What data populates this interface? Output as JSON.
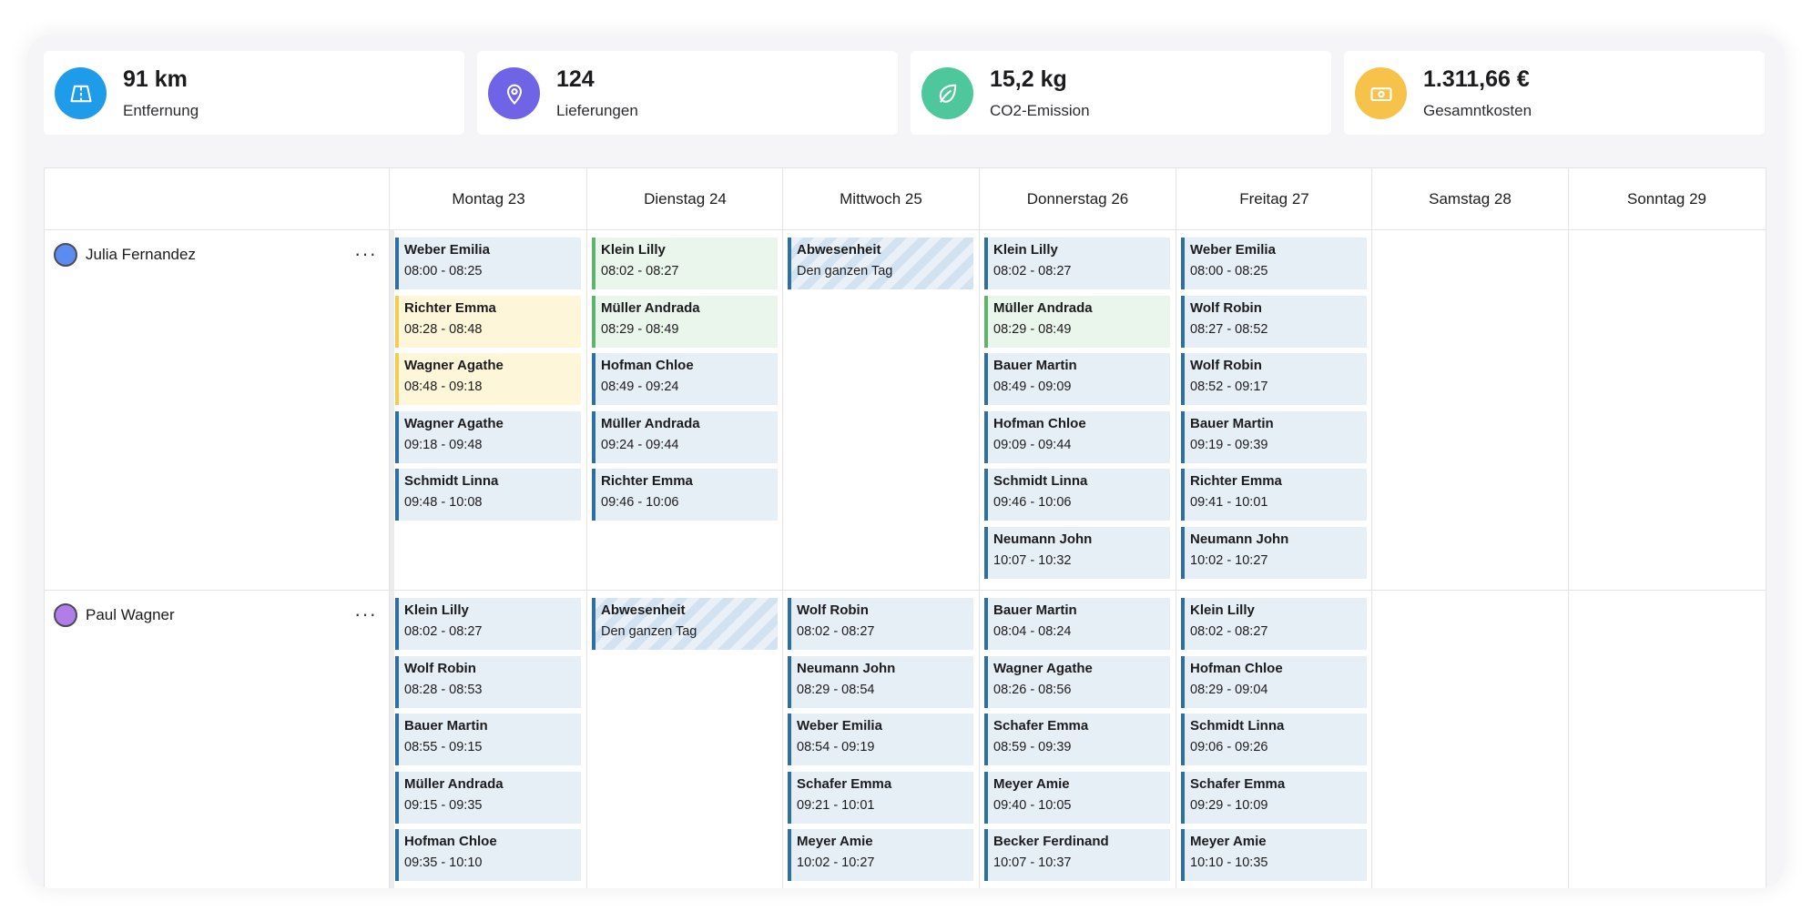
{
  "stats": [
    {
      "value": "91 km",
      "label": "Entfernung",
      "icon": "road-icon",
      "color": "#1e9be9"
    },
    {
      "value": "124",
      "label": "Lieferungen",
      "icon": "map-pin-icon",
      "color": "#6f63e6"
    },
    {
      "value": "15,2 kg",
      "label": "CO2-Emission",
      "icon": "leaf-icon",
      "color": "#4fc79c"
    },
    {
      "value": "1.311,66 €",
      "label": "Gesamntkosten",
      "icon": "banknote-icon",
      "color": "#f7c24a"
    }
  ],
  "days": [
    "Montag 23",
    "Dienstag 24",
    "Mittwoch 25",
    "Donnerstag 26",
    "Freitag 27",
    "Samstag 28",
    "Sonntag 29"
  ],
  "drivers": [
    {
      "name": "Julia Fernandez",
      "avatar_color": "#5b8def",
      "schedule": [
        [
          {
            "name": "Weber Emilia",
            "time": "08:00 - 08:25",
            "type": "blue"
          },
          {
            "name": "Richter Emma",
            "time": "08:28 - 08:48",
            "type": "yellow"
          },
          {
            "name": "Wagner Agathe",
            "time": "08:48 - 09:18",
            "type": "yellow"
          },
          {
            "name": "Wagner Agathe",
            "time": "09:18 - 09:48",
            "type": "blue"
          },
          {
            "name": "Schmidt Linna",
            "time": "09:48 - 10:08",
            "type": "blue"
          }
        ],
        [
          {
            "name": "Klein Lilly",
            "time": "08:02 - 08:27",
            "type": "green"
          },
          {
            "name": "Müller Andrada",
            "time": "08:29 - 08:49",
            "type": "green"
          },
          {
            "name": "Hofman Chloe",
            "time": "08:49 - 09:24",
            "type": "blue"
          },
          {
            "name": "Müller Andrada",
            "time": "09:24 - 09:44",
            "type": "blue"
          },
          {
            "name": "Richter Emma",
            "time": "09:46 - 10:06",
            "type": "blue"
          }
        ],
        [
          {
            "name": "Abwesenheit",
            "time": "Den ganzen Tag",
            "type": "absence"
          }
        ],
        [
          {
            "name": "Klein Lilly",
            "time": "08:02 - 08:27",
            "type": "blue"
          },
          {
            "name": "Müller Andrada",
            "time": "08:29 - 08:49",
            "type": "green"
          },
          {
            "name": "Bauer Martin",
            "time": "08:49 - 09:09",
            "type": "blue"
          },
          {
            "name": "Hofman Chloe",
            "time": "09:09 - 09:44",
            "type": "blue"
          },
          {
            "name": "Schmidt Linna",
            "time": "09:46 - 10:06",
            "type": "blue"
          },
          {
            "name": "Neumann John",
            "time": "10:07 - 10:32",
            "type": "blue"
          }
        ],
        [
          {
            "name": "Weber Emilia",
            "time": "08:00 - 08:25",
            "type": "blue"
          },
          {
            "name": "Wolf Robin",
            "time": "08:27 - 08:52",
            "type": "blue"
          },
          {
            "name": "Wolf Robin",
            "time": "08:52 - 09:17",
            "type": "blue"
          },
          {
            "name": "Bauer Martin",
            "time": "09:19 - 09:39",
            "type": "blue"
          },
          {
            "name": "Richter Emma",
            "time": "09:41 - 10:01",
            "type": "blue"
          },
          {
            "name": "Neumann John",
            "time": "10:02 - 10:27",
            "type": "blue"
          }
        ],
        [],
        []
      ]
    },
    {
      "name": "Paul Wagner",
      "avatar_color": "#b07ee6",
      "schedule": [
        [
          {
            "name": "Klein Lilly",
            "time": "08:02 - 08:27",
            "type": "blue"
          },
          {
            "name": "Wolf Robin",
            "time": "08:28 - 08:53",
            "type": "blue"
          },
          {
            "name": "Bauer Martin",
            "time": "08:55 - 09:15",
            "type": "blue"
          },
          {
            "name": "Müller Andrada",
            "time": "09:15 - 09:35",
            "type": "blue"
          },
          {
            "name": "Hofman Chloe",
            "time": "09:35 - 10:10",
            "type": "blue"
          }
        ],
        [
          {
            "name": "Abwesenheit",
            "time": "Den ganzen Tag",
            "type": "absence"
          }
        ],
        [
          {
            "name": "Wolf Robin",
            "time": "08:02 - 08:27",
            "type": "blue"
          },
          {
            "name": "Neumann John",
            "time": "08:29 - 08:54",
            "type": "blue"
          },
          {
            "name": "Weber Emilia",
            "time": "08:54 - 09:19",
            "type": "blue"
          },
          {
            "name": "Schafer Emma",
            "time": "09:21 - 10:01",
            "type": "blue"
          },
          {
            "name": "Meyer Amie",
            "time": "10:02 - 10:27",
            "type": "blue"
          }
        ],
        [
          {
            "name": "Bauer Martin",
            "time": "08:04 - 08:24",
            "type": "blue"
          },
          {
            "name": "Wagner Agathe",
            "time": "08:26 - 08:56",
            "type": "blue"
          },
          {
            "name": "Schafer Emma",
            "time": "08:59 - 09:39",
            "type": "blue"
          },
          {
            "name": "Meyer Amie",
            "time": "09:40 - 10:05",
            "type": "blue"
          },
          {
            "name": "Becker Ferdinand",
            "time": "10:07 - 10:37",
            "type": "blue"
          }
        ],
        [
          {
            "name": "Klein Lilly",
            "time": "08:02 - 08:27",
            "type": "blue"
          },
          {
            "name": "Hofman Chloe",
            "time": "08:29 - 09:04",
            "type": "blue"
          },
          {
            "name": "Schmidt Linna",
            "time": "09:06 - 09:26",
            "type": "blue"
          },
          {
            "name": "Schafer Emma",
            "time": "09:29 - 10:09",
            "type": "blue"
          },
          {
            "name": "Meyer Amie",
            "time": "10:10 - 10:35",
            "type": "blue"
          }
        ],
        [],
        []
      ]
    }
  ]
}
